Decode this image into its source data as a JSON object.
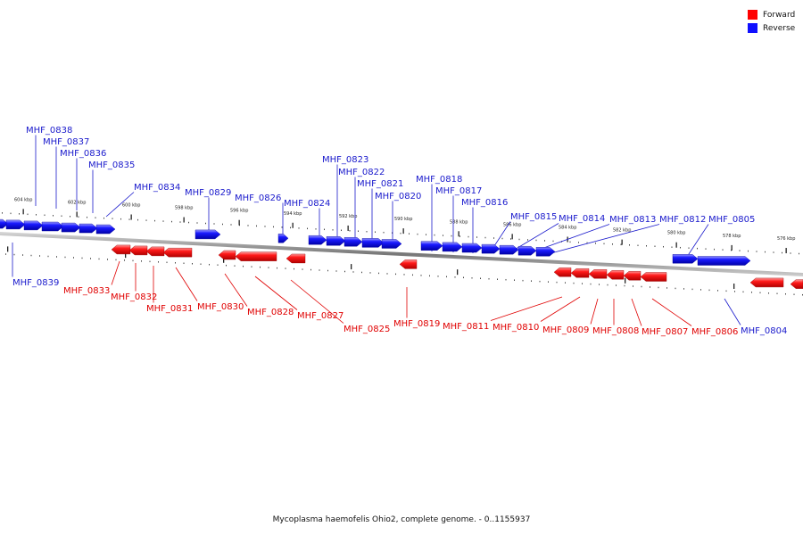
{
  "legend": {
    "forward_label": "Forward",
    "reverse_label": "Reverse",
    "forward_color": "#ff0000",
    "reverse_color": "#1010ff"
  },
  "footer": "Mycoplasma haemofelis Ohio2, complete genome. - 0..1155937",
  "scale_labels": [
    "604 kbp",
    "602 kbp",
    "600 kbp",
    "598 kbp",
    "596 kbp",
    "594 kbp",
    "592 kbp",
    "590 kbp",
    "588 kbp",
    "586 kbp",
    "584 kbp",
    "582 kbp",
    "580 kbp",
    "578 kbp",
    "576 kbp"
  ],
  "genes": [
    {
      "name": "MHF_0838",
      "strand": "reverse"
    },
    {
      "name": "MHF_0837",
      "strand": "reverse"
    },
    {
      "name": "MHF_0836",
      "strand": "reverse"
    },
    {
      "name": "MHF_0835",
      "strand": "reverse"
    },
    {
      "name": "MHF_0834",
      "strand": "reverse"
    },
    {
      "name": "MHF_0829",
      "strand": "reverse"
    },
    {
      "name": "MHF_0826",
      "strand": "reverse"
    },
    {
      "name": "MHF_0824",
      "strand": "reverse"
    },
    {
      "name": "MHF_0823",
      "strand": "reverse"
    },
    {
      "name": "MHF_0822",
      "strand": "reverse"
    },
    {
      "name": "MHF_0821",
      "strand": "reverse"
    },
    {
      "name": "MHF_0820",
      "strand": "reverse"
    },
    {
      "name": "MHF_0818",
      "strand": "reverse"
    },
    {
      "name": "MHF_0817",
      "strand": "reverse"
    },
    {
      "name": "MHF_0816",
      "strand": "reverse"
    },
    {
      "name": "MHF_0815",
      "strand": "reverse"
    },
    {
      "name": "MHF_0814",
      "strand": "reverse"
    },
    {
      "name": "MHF_0813",
      "strand": "reverse"
    },
    {
      "name": "MHF_0812",
      "strand": "reverse"
    },
    {
      "name": "MHF_0805",
      "strand": "reverse"
    },
    {
      "name": "MHF_0839",
      "strand": "reverse"
    },
    {
      "name": "MHF_0804",
      "strand": "reverse"
    },
    {
      "name": "MHF_0833",
      "strand": "forward"
    },
    {
      "name": "MHF_0832",
      "strand": "forward"
    },
    {
      "name": "MHF_0831",
      "strand": "forward"
    },
    {
      "name": "MHF_0830",
      "strand": "forward"
    },
    {
      "name": "MHF_0828",
      "strand": "forward"
    },
    {
      "name": "MHF_0827",
      "strand": "forward"
    },
    {
      "name": "MHF_0825",
      "strand": "forward"
    },
    {
      "name": "MHF_0819",
      "strand": "forward"
    },
    {
      "name": "MHF_0811",
      "strand": "forward"
    },
    {
      "name": "MHF_0810",
      "strand": "forward"
    },
    {
      "name": "MHF_0809",
      "strand": "forward"
    },
    {
      "name": "MHF_0808",
      "strand": "forward"
    },
    {
      "name": "MHF_0807",
      "strand": "forward"
    },
    {
      "name": "MHF_0806",
      "strand": "forward"
    }
  ]
}
